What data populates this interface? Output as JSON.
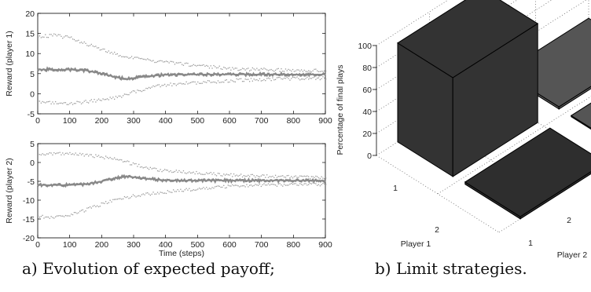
{
  "captions": {
    "left": "a) Evolution of expected payoff;",
    "right": "b) Limit strategies."
  },
  "chart_data": [
    {
      "type": "line",
      "xlabel": "",
      "ylabel": "Reward (player 1)",
      "xlim": [
        0,
        900
      ],
      "ylim": [
        -5,
        20
      ],
      "xticks": [
        0,
        100,
        200,
        300,
        400,
        500,
        600,
        700,
        800,
        900
      ],
      "yticks": [
        -5,
        0,
        5,
        10,
        15,
        20
      ],
      "colors": {
        "mean": "#888888",
        "bounds": "#9a9a9a"
      },
      "series": [
        {
          "style": "mean",
          "x": [
            0,
            100,
            150,
            200,
            250,
            280,
            300,
            350,
            400,
            500,
            600,
            700,
            800,
            900
          ],
          "values": [
            6.0,
            6.0,
            5.8,
            5.0,
            4.0,
            3.7,
            3.9,
            4.4,
            4.7,
            4.8,
            4.8,
            4.8,
            4.8,
            4.8
          ]
        },
        {
          "style": "upper",
          "x": [
            0,
            50,
            100,
            150,
            200,
            250,
            300,
            350,
            400,
            500,
            600,
            700,
            800,
            900
          ],
          "values": [
            14.3,
            14.5,
            14.0,
            12.5,
            11.0,
            9.8,
            8.8,
            8.3,
            7.8,
            7.0,
            6.3,
            6.0,
            5.8,
            5.8
          ]
        },
        {
          "style": "lower",
          "x": [
            0,
            50,
            100,
            150,
            200,
            250,
            300,
            350,
            400,
            500,
            600,
            700,
            800,
            900
          ],
          "values": [
            -2.2,
            -2.3,
            -2.4,
            -2.0,
            -1.5,
            -0.8,
            0.5,
            1.5,
            2.2,
            2.8,
            3.3,
            3.6,
            3.8,
            3.9
          ]
        }
      ]
    },
    {
      "type": "line",
      "xlabel": "Time (steps)",
      "ylabel": "Reward (player 2)",
      "xlim": [
        0,
        900
      ],
      "ylim": [
        -20,
        5
      ],
      "xticks": [
        0,
        100,
        200,
        300,
        400,
        500,
        600,
        700,
        800,
        900
      ],
      "yticks": [
        -20,
        -15,
        -10,
        -5,
        0,
        5
      ],
      "colors": {
        "mean": "#888888",
        "bounds": "#9a9a9a"
      },
      "series": [
        {
          "style": "mean",
          "x": [
            0,
            100,
            150,
            200,
            250,
            280,
            300,
            350,
            400,
            500,
            600,
            700,
            800,
            900
          ],
          "values": [
            -6.0,
            -6.0,
            -5.8,
            -5.0,
            -4.0,
            -3.7,
            -3.9,
            -4.4,
            -4.7,
            -4.8,
            -4.8,
            -4.8,
            -4.8,
            -4.8
          ]
        },
        {
          "style": "upper",
          "x": [
            0,
            50,
            100,
            150,
            200,
            250,
            300,
            350,
            400,
            500,
            600,
            700,
            800,
            900
          ],
          "values": [
            2.2,
            2.3,
            2.4,
            2.0,
            1.5,
            0.8,
            -0.5,
            -1.5,
            -2.2,
            -2.8,
            -3.3,
            -3.6,
            -3.8,
            -3.9
          ]
        },
        {
          "style": "lower",
          "x": [
            0,
            50,
            100,
            150,
            200,
            250,
            300,
            350,
            400,
            500,
            600,
            700,
            800,
            900
          ],
          "values": [
            -14.3,
            -14.5,
            -14.0,
            -12.5,
            -11.0,
            -9.8,
            -8.8,
            -8.3,
            -7.8,
            -7.0,
            -6.3,
            -6.0,
            -5.8,
            -5.8
          ]
        }
      ]
    },
    {
      "type": "bar3d",
      "zlabel": "Percentage of final plays",
      "xlabel": "Player 1",
      "ylabel": "Player 2",
      "zticks": [
        0,
        20,
        40,
        60,
        80,
        100
      ],
      "zlim": [
        0,
        100
      ],
      "player1_strategies": [
        "1",
        "2"
      ],
      "player2_strategies": [
        "1",
        "2"
      ],
      "bars": [
        {
          "p1": "1",
          "p2": "1",
          "value": 90,
          "color": "#333333"
        },
        {
          "p1": "1",
          "p2": "2",
          "value": 2,
          "color": "#555555"
        },
        {
          "p1": "2",
          "p2": "1",
          "value": 2,
          "color": "#2e2e2e"
        },
        {
          "p1": "2",
          "p2": "2",
          "value": 1,
          "color": "#555555"
        }
      ]
    }
  ]
}
